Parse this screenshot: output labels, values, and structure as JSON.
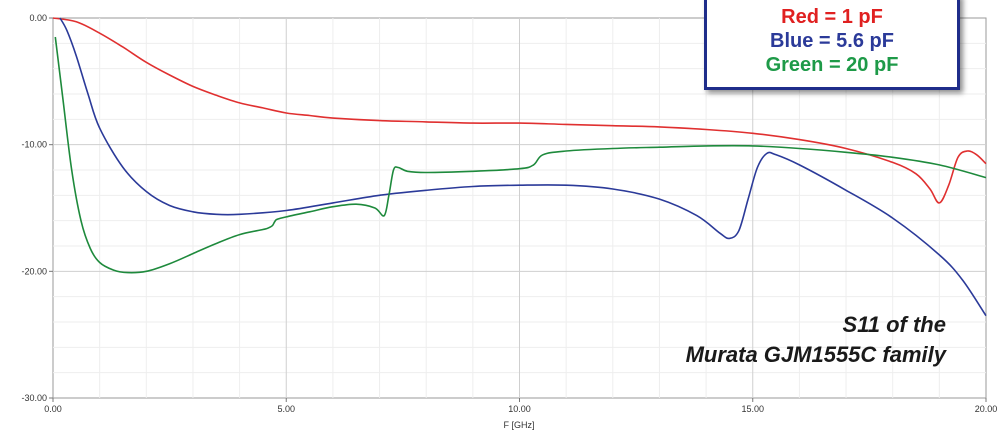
{
  "chart_data": {
    "type": "line",
    "xlabel": "F [GHz]",
    "ylabel": "",
    "xlim": [
      0,
      20
    ],
    "ylim": [
      -30,
      0
    ],
    "x_ticks": [
      "0.00",
      "5.00",
      "10.00",
      "15.00",
      "20.00"
    ],
    "y_ticks": [
      "0.00",
      "-10.00",
      "-20.00",
      "-30.00"
    ],
    "grid": true,
    "legend": {
      "placement": "top-right",
      "entries": [
        "Red = 1 pF",
        "Blue = 5.6 pF",
        "Green = 20 pF"
      ]
    },
    "annotation": [
      "S11 of the",
      "Murata GJM1555C family"
    ],
    "series": [
      {
        "color": "#e03030",
        "points": [
          [
            0,
            0
          ],
          [
            0.5,
            -0.3
          ],
          [
            1,
            -1.2
          ],
          [
            1.5,
            -2.3
          ],
          [
            2,
            -3.5
          ],
          [
            2.5,
            -4.5
          ],
          [
            3,
            -5.4
          ],
          [
            3.5,
            -6.1
          ],
          [
            4,
            -6.7
          ],
          [
            4.5,
            -7.1
          ],
          [
            5,
            -7.5
          ],
          [
            5.5,
            -7.7
          ],
          [
            6,
            -7.9
          ],
          [
            7,
            -8.1
          ],
          [
            8,
            -8.2
          ],
          [
            9,
            -8.3
          ],
          [
            10,
            -8.3
          ],
          [
            11,
            -8.4
          ],
          [
            12,
            -8.5
          ],
          [
            13,
            -8.6
          ],
          [
            14,
            -8.8
          ],
          [
            15,
            -9.1
          ],
          [
            16,
            -9.6
          ],
          [
            17,
            -10.3
          ],
          [
            18,
            -11.4
          ],
          [
            18.5,
            -12.3
          ],
          [
            18.8,
            -13.5
          ],
          [
            19,
            -14.6
          ],
          [
            19.2,
            -13.2
          ],
          [
            19.4,
            -11
          ],
          [
            19.6,
            -10.5
          ],
          [
            19.8,
            -10.8
          ],
          [
            20,
            -11.5
          ]
        ]
      },
      {
        "color": "#2b3a99",
        "points": [
          [
            0.15,
            0
          ],
          [
            0.3,
            -1
          ],
          [
            0.5,
            -3
          ],
          [
            0.75,
            -6
          ],
          [
            1,
            -8.7
          ],
          [
            1.5,
            -11.8
          ],
          [
            2,
            -13.7
          ],
          [
            2.5,
            -14.8
          ],
          [
            3,
            -15.3
          ],
          [
            3.5,
            -15.5
          ],
          [
            4,
            -15.5
          ],
          [
            5,
            -15.2
          ],
          [
            6,
            -14.6
          ],
          [
            7,
            -14
          ],
          [
            8,
            -13.6
          ],
          [
            9,
            -13.3
          ],
          [
            10,
            -13.2
          ],
          [
            11,
            -13.2
          ],
          [
            12,
            -13.5
          ],
          [
            13,
            -14.3
          ],
          [
            13.8,
            -15.6
          ],
          [
            14.3,
            -17
          ],
          [
            14.5,
            -17.4
          ],
          [
            14.7,
            -16.8
          ],
          [
            14.9,
            -14.3
          ],
          [
            15.1,
            -11.8
          ],
          [
            15.3,
            -10.7
          ],
          [
            15.5,
            -10.8
          ],
          [
            16,
            -11.6
          ],
          [
            17,
            -13.6
          ],
          [
            18,
            -15.8
          ],
          [
            19,
            -18.7
          ],
          [
            19.5,
            -20.7
          ],
          [
            20,
            -23.5
          ]
        ]
      },
      {
        "color": "#1e8a3c",
        "points": [
          [
            0.05,
            -1.5
          ],
          [
            0.2,
            -6
          ],
          [
            0.4,
            -12
          ],
          [
            0.6,
            -16
          ],
          [
            0.8,
            -18.2
          ],
          [
            1,
            -19.3
          ],
          [
            1.3,
            -19.9
          ],
          [
            1.6,
            -20.1
          ],
          [
            2,
            -20
          ],
          [
            2.5,
            -19.4
          ],
          [
            3,
            -18.6
          ],
          [
            3.5,
            -17.8
          ],
          [
            4,
            -17.1
          ],
          [
            4.5,
            -16.7
          ],
          [
            4.6,
            -16.6
          ],
          [
            4.7,
            -16.4
          ],
          [
            4.75,
            -16.1
          ],
          [
            4.8,
            -15.9
          ],
          [
            5,
            -15.7
          ],
          [
            5.5,
            -15.3
          ],
          [
            6,
            -14.9
          ],
          [
            6.5,
            -14.7
          ],
          [
            6.9,
            -15
          ],
          [
            7.1,
            -15.6
          ],
          [
            7.2,
            -14
          ],
          [
            7.3,
            -12
          ],
          [
            7.4,
            -11.8
          ],
          [
            7.6,
            -12.1
          ],
          [
            8,
            -12.2
          ],
          [
            9,
            -12.1
          ],
          [
            10,
            -11.9
          ],
          [
            10.3,
            -11.6
          ],
          [
            10.5,
            -10.8
          ],
          [
            11,
            -10.5
          ],
          [
            12,
            -10.3
          ],
          [
            13,
            -10.2
          ],
          [
            14,
            -10.1
          ],
          [
            15,
            -10.1
          ],
          [
            16,
            -10.3
          ],
          [
            17,
            -10.6
          ],
          [
            18,
            -11
          ],
          [
            19,
            -11.6
          ],
          [
            20,
            -12.6
          ]
        ]
      }
    ]
  }
}
